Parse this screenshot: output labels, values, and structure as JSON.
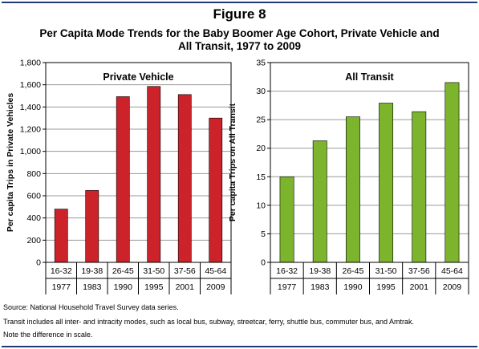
{
  "figure_label": "Figure 8",
  "title_line1": "Per Capita Mode Trends for the Baby Boomer Age Cohort, Private Vehicle and",
  "title_line2": "All Transit, 1977 to 2009",
  "notes": {
    "source": "Source: National Household Travel Survey data series.",
    "transit": "Transit includes all inter- and intracity modes, such as local bus, subway, streetcar, ferry, shuttle bus, commuter bus, and Amtrak.",
    "scale": "Note the difference in scale."
  },
  "colors": {
    "private_bar": "#cc2229",
    "transit_bar": "#7cb42e",
    "grid": "#9a9a9a",
    "frame": "#000000"
  },
  "chart_data": [
    {
      "type": "bar",
      "title": "Private Vehicle",
      "ylabel": "Per capita Trips in Private Vehicles",
      "ylim": [
        0,
        1800
      ],
      "yticks": [
        0,
        200,
        400,
        600,
        800,
        1000,
        1200,
        1400,
        1600,
        1800
      ],
      "ytick_labels": [
        "0",
        "200",
        "400",
        "600",
        "800",
        "1,000",
        "1,200",
        "1,400",
        "1,600",
        "1,800"
      ],
      "categories": [
        "16-32",
        "19-38",
        "26-45",
        "31-50",
        "37-56",
        "45-64"
      ],
      "years": [
        "1977",
        "1983",
        "1990",
        "1995",
        "2001",
        "2009"
      ],
      "values": [
        480,
        648,
        1493,
        1585,
        1512,
        1300
      ],
      "grid": true,
      "color": "#cc2229"
    },
    {
      "type": "bar",
      "title": "All Transit",
      "ylabel": "Per capita Trips on All Transit",
      "ylim": [
        0,
        35
      ],
      "yticks": [
        0,
        5,
        10,
        15,
        20,
        25,
        30,
        35
      ],
      "ytick_labels": [
        "0",
        "5",
        "10",
        "15",
        "20",
        "25",
        "30",
        "35"
      ],
      "categories": [
        "16-32",
        "19-38",
        "26-45",
        "31-50",
        "37-56",
        "45-64"
      ],
      "years": [
        "1977",
        "1983",
        "1990",
        "1995",
        "2001",
        "2009"
      ],
      "values": [
        15.0,
        21.3,
        25.5,
        27.9,
        26.4,
        31.5
      ],
      "grid": true,
      "color": "#7cb42e"
    }
  ]
}
